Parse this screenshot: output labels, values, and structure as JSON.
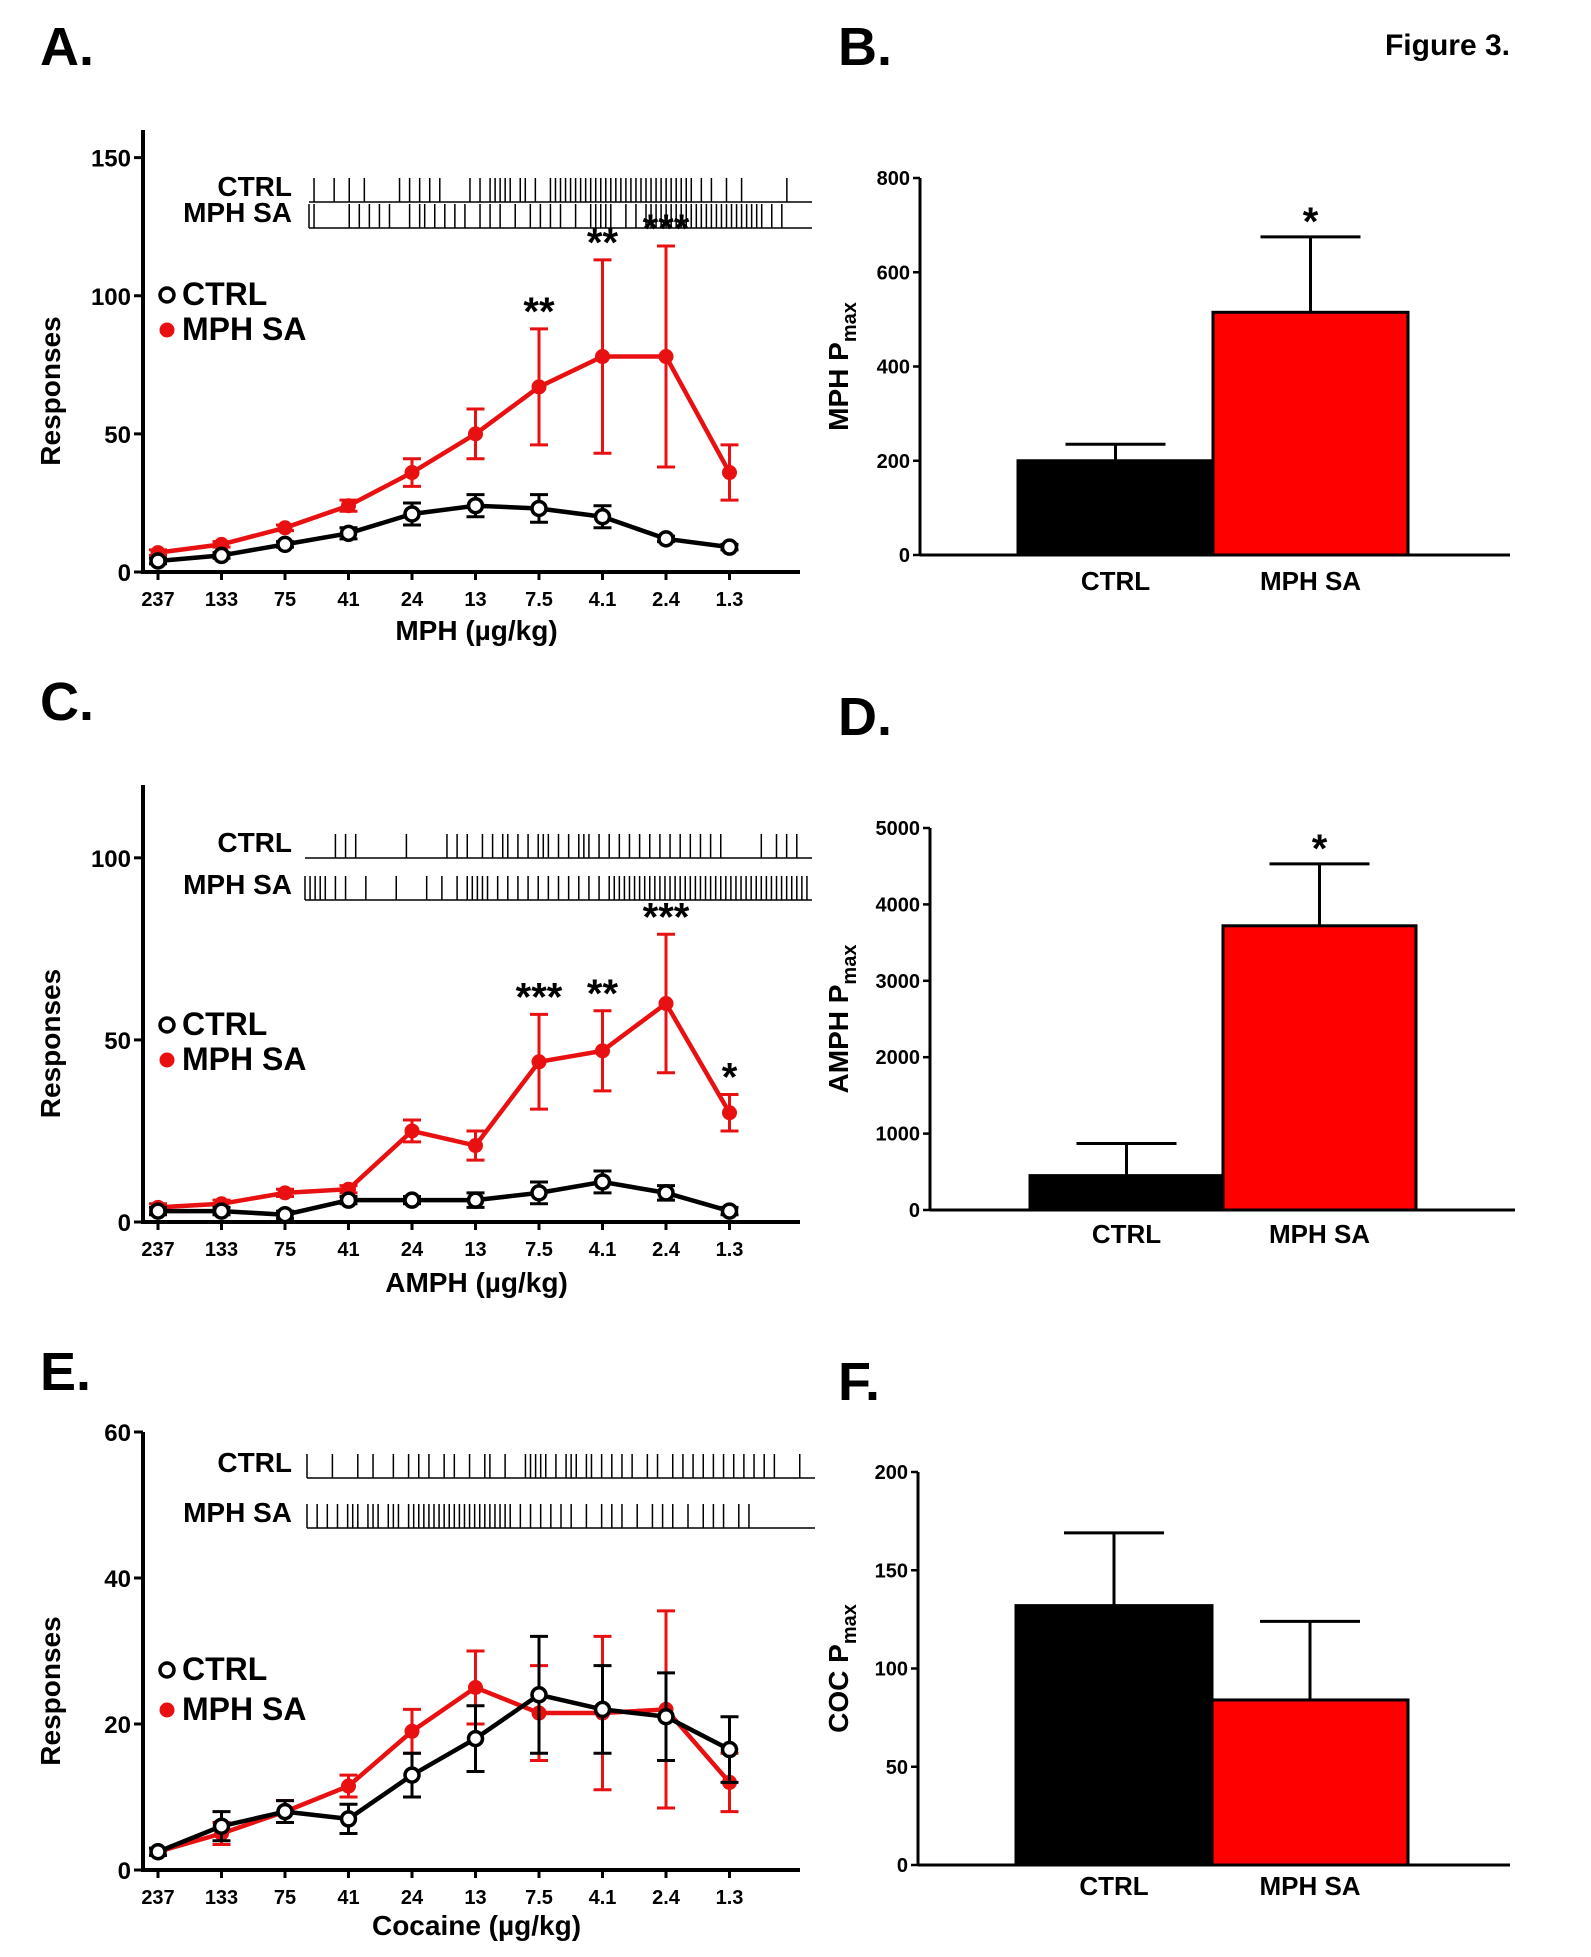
{
  "figure_title": "Figure 3.",
  "colors": {
    "ctrl": "#000000",
    "mph_sa": "#e81010",
    "bar_ctrl": "#000000",
    "bar_mph": "#ff0000"
  },
  "chart_data": [
    {
      "panel": "A.",
      "type": "line",
      "xlabel": "MPH (µg/kg)",
      "ylabel": "Responses",
      "categories": [
        "237",
        "133",
        "75",
        "41",
        "24",
        "13",
        "7.5",
        "4.1",
        "2.4",
        "1.3"
      ],
      "ylim": [
        0,
        160
      ],
      "yticks": [
        0,
        50,
        100,
        150
      ],
      "series": [
        {
          "name": "CTRL",
          "marker": "open-circle",
          "values": [
            4,
            6,
            10,
            14,
            21,
            24,
            23,
            20,
            12,
            9
          ],
          "errors": [
            1,
            1,
            1,
            2,
            4,
            4,
            5,
            4,
            1,
            1
          ]
        },
        {
          "name": "MPH SA",
          "marker": "filled-circle",
          "values": [
            7,
            10,
            16,
            24,
            36,
            50,
            67,
            78,
            78,
            36
          ],
          "errors": [
            1,
            1,
            1,
            2,
            5,
            9,
            21,
            35,
            40,
            10
          ]
        }
      ],
      "significance": [
        {
          "category": "7.5",
          "label": "**"
        },
        {
          "category": "4.1",
          "label": "**"
        },
        {
          "category": "2.4",
          "label": "***"
        }
      ],
      "raster": [
        {
          "label": "CTRL",
          "ticks": [
            0.01,
            0.05,
            0.08,
            0.11,
            0.18,
            0.2,
            0.22,
            0.24,
            0.26,
            0.32,
            0.34,
            0.36,
            0.37,
            0.38,
            0.39,
            0.4,
            0.42,
            0.43,
            0.45,
            0.48,
            0.49,
            0.5,
            0.51,
            0.52,
            0.53,
            0.54,
            0.55,
            0.56,
            0.57,
            0.58,
            0.59,
            0.6,
            0.61,
            0.62,
            0.63,
            0.64,
            0.65,
            0.66,
            0.67,
            0.68,
            0.69,
            0.7,
            0.71,
            0.72,
            0.73,
            0.74,
            0.75,
            0.76,
            0.78,
            0.8,
            0.83,
            0.86,
            0.95
          ]
        },
        {
          "label": "MPH SA",
          "ticks": [
            0.0,
            0.01,
            0.08,
            0.1,
            0.12,
            0.14,
            0.16,
            0.2,
            0.22,
            0.23,
            0.25,
            0.27,
            0.29,
            0.31,
            0.34,
            0.36,
            0.38,
            0.41,
            0.44,
            0.46,
            0.48,
            0.5,
            0.53,
            0.56,
            0.57,
            0.58,
            0.59,
            0.6,
            0.63,
            0.65,
            0.67,
            0.68,
            0.69,
            0.7,
            0.71,
            0.72,
            0.73,
            0.74,
            0.75,
            0.76,
            0.77,
            0.78,
            0.79,
            0.8,
            0.81,
            0.82,
            0.83,
            0.84,
            0.85,
            0.86,
            0.87,
            0.88,
            0.89,
            0.9,
            0.92,
            0.94
          ]
        }
      ]
    },
    {
      "panel": "B.",
      "type": "bar",
      "ylabel": "MPH P",
      "ylabel_sub": "max",
      "categories": [
        "CTRL",
        "MPH  SA"
      ],
      "values": [
        200,
        515
      ],
      "errors": [
        35,
        160
      ],
      "ylim": [
        0,
        800
      ],
      "yticks": [
        0,
        200,
        400,
        600,
        800
      ],
      "significance": [
        {
          "category": "MPH  SA",
          "label": "*"
        }
      ]
    },
    {
      "panel": "C.",
      "type": "line",
      "xlabel": "AMPH (µg/kg)",
      "ylabel": "Responses",
      "categories": [
        "237",
        "133",
        "75",
        "41",
        "24",
        "13",
        "7.5",
        "4.1",
        "2.4",
        "1.3"
      ],
      "ylim": [
        0,
        120
      ],
      "yticks": [
        0,
        50,
        100
      ],
      "series": [
        {
          "name": "CTRL",
          "marker": "open-circle",
          "values": [
            3,
            3,
            2,
            6,
            6,
            6,
            8,
            11,
            8,
            3
          ],
          "errors": [
            1,
            1,
            1,
            1,
            1,
            2,
            3,
            3,
            2,
            1
          ]
        },
        {
          "name": "MPH SA",
          "marker": "filled-circle",
          "values": [
            4,
            5,
            8,
            9,
            25,
            21,
            44,
            47,
            60,
            30
          ],
          "errors": [
            1,
            1,
            1,
            1,
            3,
            4,
            13,
            11,
            19,
            5
          ]
        }
      ],
      "significance": [
        {
          "category": "7.5",
          "label": "***"
        },
        {
          "category": "4.1",
          "label": "**"
        },
        {
          "category": "2.4",
          "label": "***"
        },
        {
          "category": "1.3",
          "label": "*"
        }
      ],
      "raster": [
        {
          "label": "CTRL",
          "ticks": [
            0.06,
            0.08,
            0.1,
            0.2,
            0.28,
            0.3,
            0.32,
            0.35,
            0.37,
            0.39,
            0.4,
            0.42,
            0.44,
            0.46,
            0.47,
            0.48,
            0.5,
            0.52,
            0.54,
            0.55,
            0.56,
            0.58,
            0.6,
            0.62,
            0.64,
            0.66,
            0.68,
            0.7,
            0.72,
            0.74,
            0.76,
            0.78,
            0.8,
            0.82,
            0.9,
            0.93,
            0.95,
            0.97
          ]
        },
        {
          "label": "MPH SA",
          "ticks": [
            0.0,
            0.01,
            0.02,
            0.03,
            0.04,
            0.06,
            0.08,
            0.12,
            0.18,
            0.24,
            0.27,
            0.3,
            0.32,
            0.33,
            0.34,
            0.35,
            0.36,
            0.38,
            0.4,
            0.42,
            0.44,
            0.46,
            0.48,
            0.5,
            0.52,
            0.54,
            0.56,
            0.58,
            0.6,
            0.61,
            0.62,
            0.63,
            0.64,
            0.65,
            0.66,
            0.67,
            0.68,
            0.69,
            0.7,
            0.71,
            0.72,
            0.73,
            0.74,
            0.75,
            0.76,
            0.77,
            0.78,
            0.79,
            0.8,
            0.81,
            0.82,
            0.83,
            0.84,
            0.85,
            0.86,
            0.87,
            0.88,
            0.89,
            0.9,
            0.91,
            0.92,
            0.93,
            0.94,
            0.95,
            0.96,
            0.97,
            0.98,
            0.99
          ]
        }
      ]
    },
    {
      "panel": "D.",
      "type": "bar",
      "ylabel": "AMPH P",
      "ylabel_sub": "max",
      "categories": [
        "CTRL",
        "MPH SA"
      ],
      "values": [
        450,
        3720
      ],
      "errors": [
        420,
        810
      ],
      "ylim": [
        0,
        5000
      ],
      "yticks": [
        0,
        1000,
        2000,
        3000,
        4000,
        5000
      ],
      "significance": [
        {
          "category": "MPH SA",
          "label": "*"
        }
      ]
    },
    {
      "panel": "E.",
      "type": "line",
      "xlabel": "Cocaine (µg/kg)",
      "ylabel": "Responses",
      "categories": [
        "237",
        "133",
        "75",
        "41",
        "24",
        "13",
        "7.5",
        "4.1",
        "2.4",
        "1.3"
      ],
      "ylim": [
        0,
        60
      ],
      "yticks": [
        0,
        20,
        40,
        60
      ],
      "series": [
        {
          "name": "CTRL",
          "marker": "open-circle",
          "values": [
            2.5,
            6,
            8,
            7,
            13,
            18,
            24,
            22,
            21,
            16.5
          ],
          "errors": [
            0.5,
            2,
            1.5,
            2,
            3,
            4.5,
            8,
            6,
            6,
            4.5
          ]
        },
        {
          "name": "MPH SA",
          "marker": "filled-circle",
          "values": [
            2.5,
            5,
            8,
            11.5,
            19,
            25,
            21.5,
            21.5,
            22,
            12
          ],
          "errors": [
            0.5,
            1.5,
            1.5,
            1.5,
            3,
            5,
            6.5,
            10.5,
            13.5,
            4
          ]
        }
      ],
      "significance": [],
      "raster": [
        {
          "label": "CTRL",
          "ticks": [
            0.0,
            0.05,
            0.1,
            0.13,
            0.17,
            0.2,
            0.22,
            0.24,
            0.27,
            0.29,
            0.32,
            0.35,
            0.36,
            0.39,
            0.43,
            0.44,
            0.45,
            0.46,
            0.47,
            0.49,
            0.51,
            0.52,
            0.53,
            0.55,
            0.56,
            0.58,
            0.6,
            0.62,
            0.64,
            0.67,
            0.69,
            0.72,
            0.74,
            0.76,
            0.78,
            0.8,
            0.82,
            0.84,
            0.86,
            0.88,
            0.9,
            0.92,
            0.97
          ]
        },
        {
          "label": "MPH SA",
          "ticks": [
            0.0,
            0.02,
            0.04,
            0.06,
            0.08,
            0.09,
            0.1,
            0.12,
            0.13,
            0.14,
            0.16,
            0.17,
            0.18,
            0.2,
            0.21,
            0.22,
            0.23,
            0.24,
            0.25,
            0.26,
            0.27,
            0.28,
            0.29,
            0.3,
            0.31,
            0.32,
            0.33,
            0.34,
            0.35,
            0.36,
            0.37,
            0.38,
            0.39,
            0.4,
            0.42,
            0.44,
            0.46,
            0.48,
            0.5,
            0.52,
            0.55,
            0.58,
            0.6,
            0.62,
            0.65,
            0.68,
            0.7,
            0.72,
            0.75,
            0.78,
            0.8,
            0.82,
            0.85,
            0.87
          ]
        }
      ]
    },
    {
      "panel": "F.",
      "type": "bar",
      "ylabel": "COC P",
      "ylabel_sub": "max",
      "categories": [
        "CTRL",
        "MPH  SA"
      ],
      "values": [
        132,
        84
      ],
      "errors": [
        37,
        40
      ],
      "ylim": [
        0,
        200
      ],
      "yticks": [
        0,
        50,
        100,
        150,
        200
      ],
      "significance": []
    }
  ]
}
